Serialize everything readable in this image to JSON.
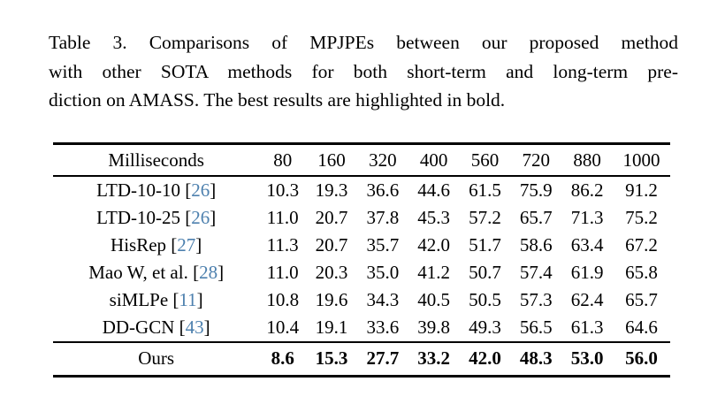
{
  "caption": {
    "lines": [
      "Table 3. Comparisons of MPJPEs between our proposed method",
      "with other SOTA methods for both short-term and long-term pre-",
      "diction on AMASS. The best results are highlighted in bold."
    ]
  },
  "colors": {
    "background": "#ffffff",
    "text": "#000000",
    "rule": "#000000",
    "citation_link": "#4d80ae"
  },
  "chart_data": {
    "type": "table",
    "title": "Table 3. Comparisons of MPJPEs between our proposed method with other SOTA methods for both short-term and long-term prediction on AMASS. The best results are highlighted in bold.",
    "columns": [
      "Milliseconds",
      "80",
      "160",
      "320",
      "400",
      "560",
      "720",
      "880",
      "1000"
    ],
    "rows": [
      {
        "method": "LTD-10-10",
        "citation": "26",
        "values": [
          "10.3",
          "19.3",
          "36.6",
          "44.6",
          "61.5",
          "75.9",
          "86.2",
          "91.2"
        ],
        "bold": false
      },
      {
        "method": "LTD-10-25",
        "citation": "26",
        "values": [
          "11.0",
          "20.7",
          "37.8",
          "45.3",
          "57.2",
          "65.7",
          "71.3",
          "75.2"
        ],
        "bold": false
      },
      {
        "method": "HisRep",
        "citation": "27",
        "values": [
          "11.3",
          "20.7",
          "35.7",
          "42.0",
          "51.7",
          "58.6",
          "63.4",
          "67.2"
        ],
        "bold": false
      },
      {
        "method": "Mao W, et al.",
        "citation": "28",
        "values": [
          "11.0",
          "20.3",
          "35.0",
          "41.2",
          "50.7",
          "57.4",
          "61.9",
          "65.8"
        ],
        "bold": false
      },
      {
        "method": "siMLPe",
        "citation": "11",
        "values": [
          "10.8",
          "19.6",
          "34.3",
          "40.5",
          "50.5",
          "57.3",
          "62.4",
          "65.7"
        ],
        "bold": false
      },
      {
        "method": "DD-GCN",
        "citation": "43",
        "values": [
          "10.4",
          "19.1",
          "33.6",
          "39.8",
          "49.3",
          "56.5",
          "61.3",
          "64.6"
        ],
        "bold": false
      },
      {
        "method": "Ours",
        "citation": null,
        "values": [
          "8.6",
          "15.3",
          "27.7",
          "33.2",
          "42.0",
          "48.3",
          "53.0",
          "56.0"
        ],
        "bold": true
      }
    ]
  }
}
